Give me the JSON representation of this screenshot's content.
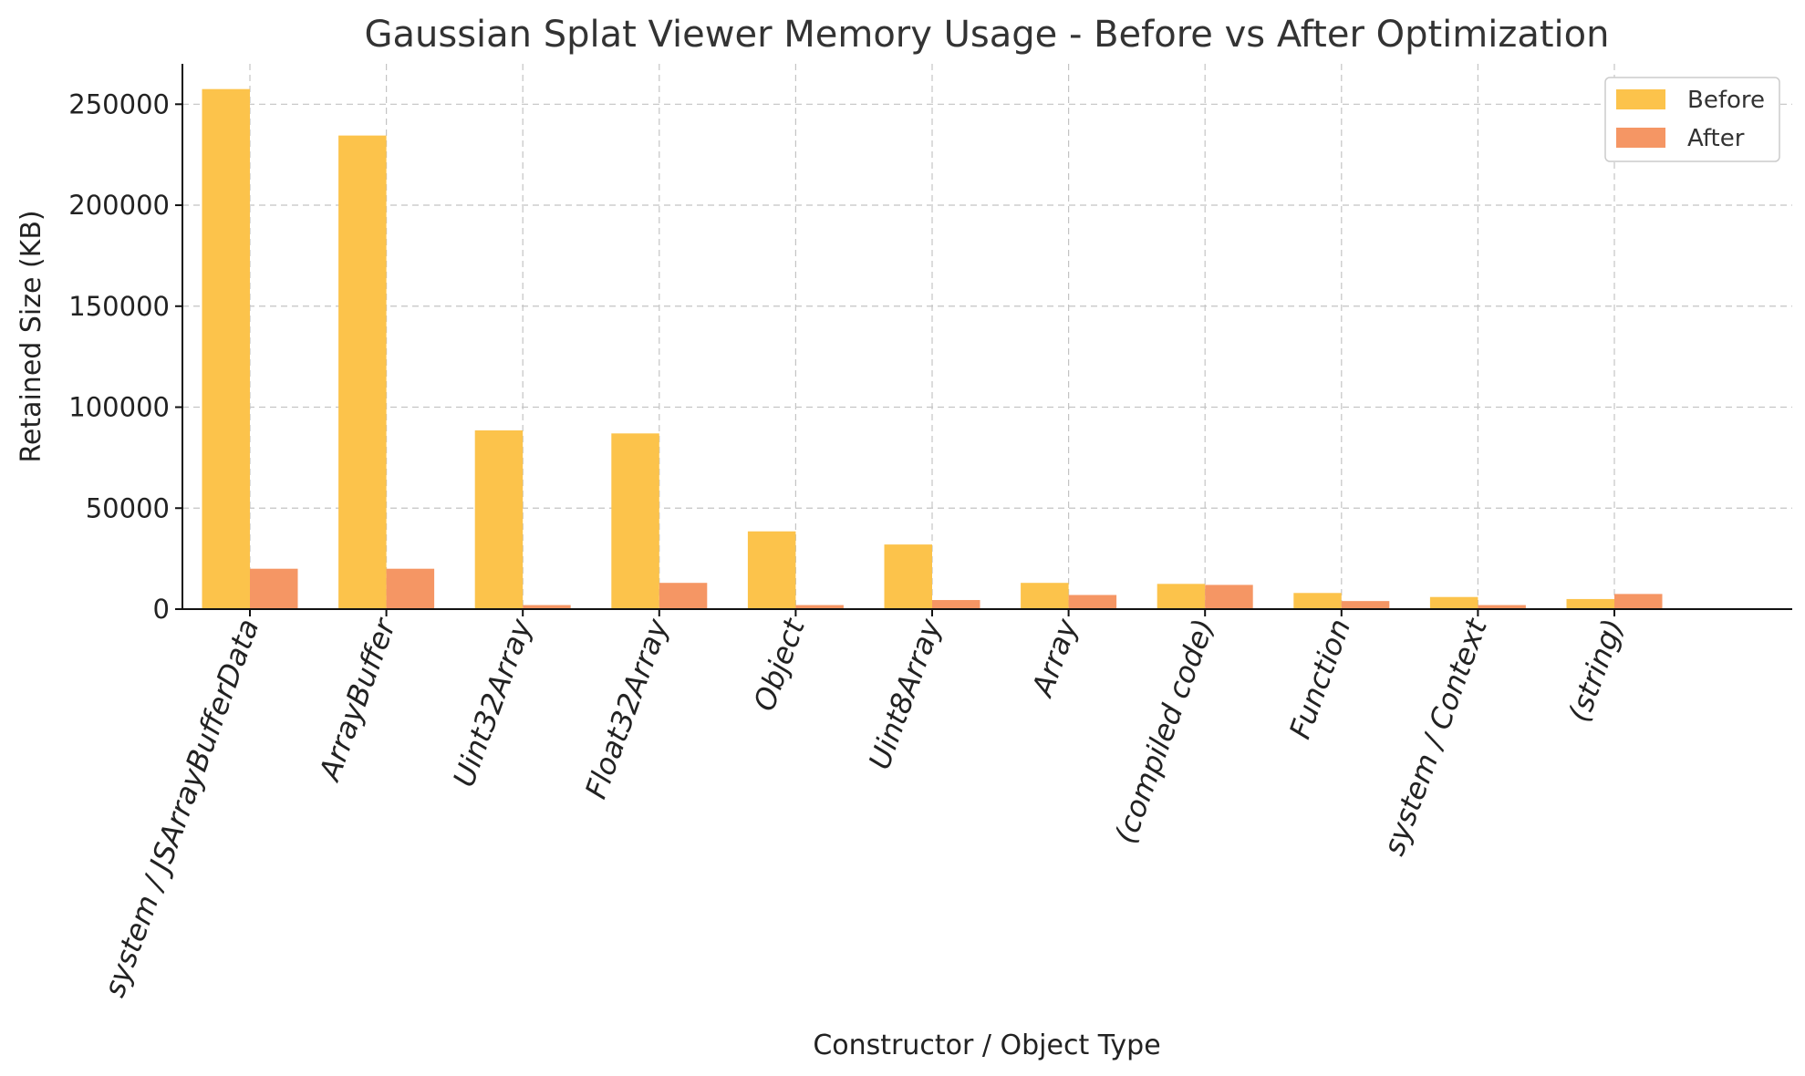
{
  "chart_data": {
    "type": "bar",
    "title": "Gaussian Splat Viewer Memory Usage - Before vs After Optimization",
    "xlabel": "Constructor / Object Type",
    "ylabel": "Retained Size (KB)",
    "ylim": [
      0,
      270000
    ],
    "yticks": [
      0,
      50000,
      100000,
      150000,
      200000,
      250000
    ],
    "grid": true,
    "legend_position": "top-right",
    "categories": [
      "system / JSArrayBufferData",
      "ArrayBuffer",
      "Uint32Array",
      "Float32Array",
      "Object",
      "Uint8Array",
      "Array",
      "(compiled code)",
      "Function",
      "system / Context",
      "(string)"
    ],
    "series": [
      {
        "name": "Before",
        "color": "#fcc34b",
        "values": [
          257500,
          234500,
          88500,
          87000,
          38500,
          32000,
          13000,
          12500,
          8000,
          6000,
          5000
        ]
      },
      {
        "name": "After",
        "color": "#f59664",
        "values": [
          20000,
          20000,
          2000,
          13000,
          2000,
          4500,
          7000,
          12000,
          4000,
          2000,
          7500
        ]
      }
    ]
  }
}
